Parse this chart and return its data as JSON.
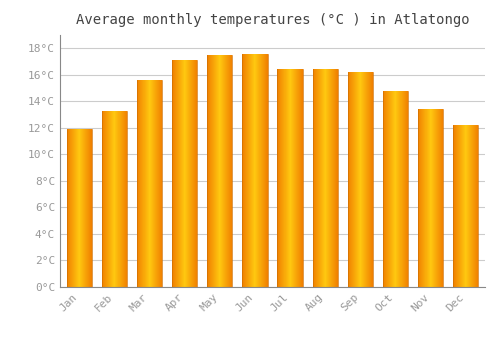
{
  "title": "Average monthly temperatures (°C ) in Atlatongo",
  "months": [
    "Jan",
    "Feb",
    "Mar",
    "Apr",
    "May",
    "Jun",
    "Jul",
    "Aug",
    "Sep",
    "Oct",
    "Nov",
    "Dec"
  ],
  "temperatures": [
    11.9,
    13.3,
    15.6,
    17.1,
    17.5,
    17.6,
    16.4,
    16.4,
    16.2,
    14.8,
    13.4,
    12.2
  ],
  "bar_color_center": "#FFB300",
  "bar_color_edge": "#F08000",
  "background_color": "#FFFFFF",
  "grid_color": "#CCCCCC",
  "text_color": "#999999",
  "title_color": "#444444",
  "ylim": [
    0,
    19
  ],
  "yticks": [
    0,
    2,
    4,
    6,
    8,
    10,
    12,
    14,
    16,
    18
  ],
  "ylabel_suffix": "°C",
  "title_fontsize": 10,
  "tick_fontsize": 8,
  "font_family": "monospace"
}
